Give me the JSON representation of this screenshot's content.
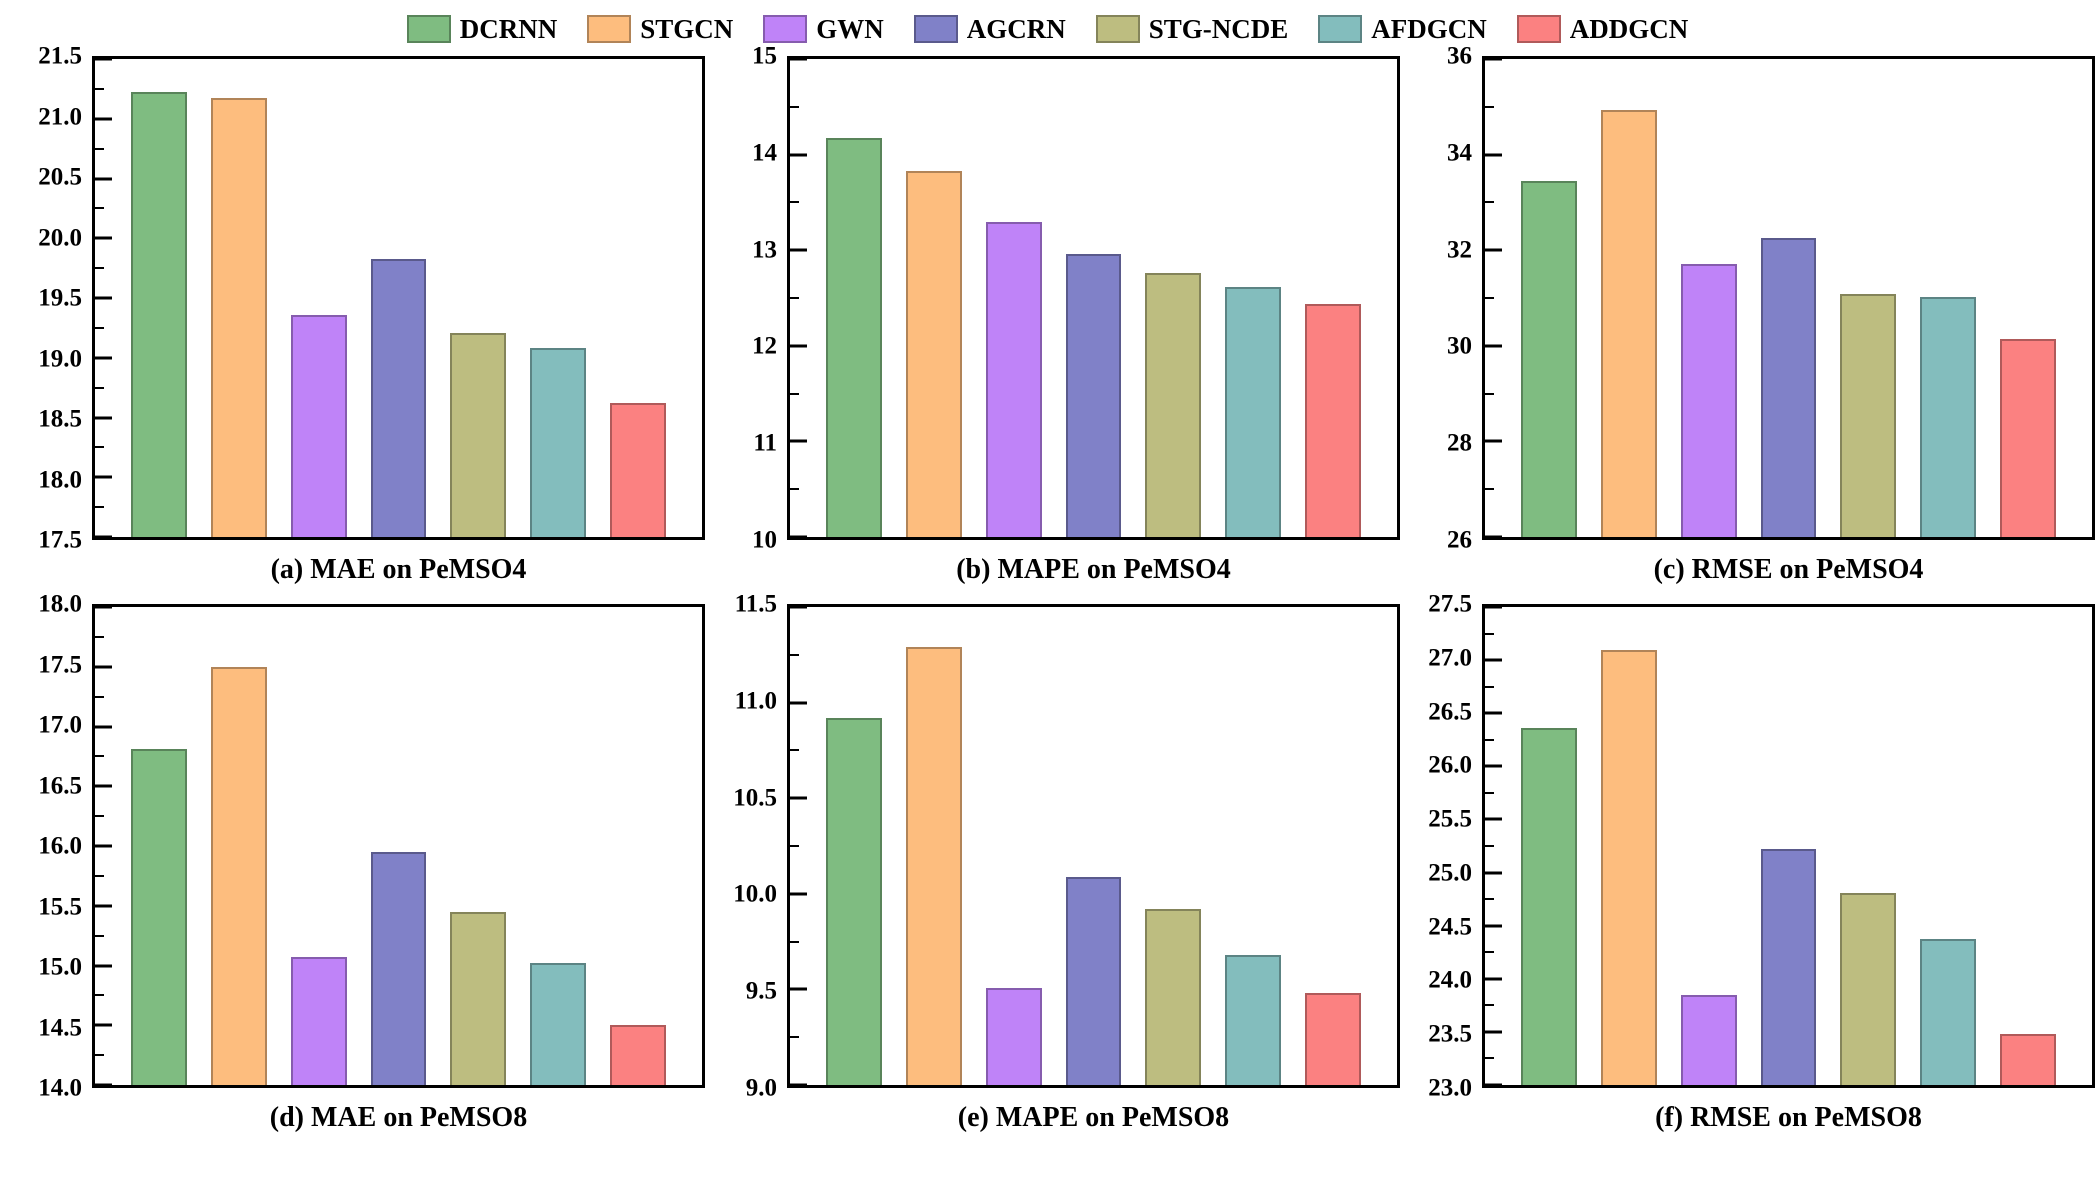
{
  "figure": {
    "legend": [
      {
        "label": "DCRNN",
        "fill": "#7fbc81",
        "edge": "#59845a"
      },
      {
        "label": "STGCN",
        "fill": "#fdbd7e",
        "edge": "#b18458"
      },
      {
        "label": "GWN",
        "fill": "#bf83f8",
        "edge": "#865cae"
      },
      {
        "label": "AGCRN",
        "fill": "#8081c8",
        "edge": "#5a5a8c"
      },
      {
        "label": "STG-NCDE",
        "fill": "#bdbd80",
        "edge": "#84845a"
      },
      {
        "label": "AFDGCN",
        "fill": "#83bdbd",
        "edge": "#5c8484"
      },
      {
        "label": "ADDGCN",
        "fill": "#fb8181",
        "edge": "#b05a5a"
      }
    ]
  },
  "chart_data": [
    {
      "type": "bar",
      "title": "(a) MAE on PeMSO4",
      "categories": [
        "DCRNN",
        "STGCN",
        "GWN",
        "AGCRN",
        "STG-NCDE",
        "AFDGCN",
        "ADDGCN"
      ],
      "values": [
        21.22,
        21.17,
        19.36,
        19.83,
        19.21,
        19.08,
        18.62
      ],
      "ylim": [
        17.5,
        21.5
      ],
      "yticks": [
        "17.5",
        "18.0",
        "18.5",
        "19.0",
        "19.5",
        "20.0",
        "20.5",
        "21.0",
        "21.5"
      ],
      "minor_step": 0.25,
      "grid": false,
      "legend_position": "top-center"
    },
    {
      "type": "bar",
      "title": "(b) MAPE on PeMSO4",
      "categories": [
        "DCRNN",
        "STGCN",
        "GWN",
        "AGCRN",
        "STG-NCDE",
        "AFDGCN",
        "ADDGCN"
      ],
      "values": [
        14.17,
        13.83,
        13.3,
        12.96,
        12.76,
        12.62,
        12.44
      ],
      "ylim": [
        10,
        15
      ],
      "yticks": [
        "10",
        "11",
        "12",
        "13",
        "14",
        "15"
      ],
      "minor_step": 0.5,
      "grid": false,
      "legend_position": "top-center"
    },
    {
      "type": "bar",
      "title": "(c) RMSE on PeMSO4",
      "categories": [
        "DCRNN",
        "STGCN",
        "GWN",
        "AGCRN",
        "STG-NCDE",
        "AFDGCN",
        "ADDGCN"
      ],
      "values": [
        33.44,
        34.93,
        31.72,
        32.26,
        31.09,
        31.02,
        30.14
      ],
      "ylim": [
        26,
        36
      ],
      "yticks": [
        "26",
        "28",
        "30",
        "32",
        "34",
        "36"
      ],
      "minor_step": 1,
      "grid": false,
      "legend_position": "top-center"
    },
    {
      "type": "bar",
      "title": "(d) MAE on PeMSO8",
      "categories": [
        "DCRNN",
        "STGCN",
        "GWN",
        "AGCRN",
        "STG-NCDE",
        "AFDGCN",
        "ADDGCN"
      ],
      "values": [
        16.81,
        17.5,
        15.07,
        15.95,
        15.45,
        15.02,
        14.5
      ],
      "ylim": [
        14,
        18
      ],
      "yticks": [
        "14.0",
        "14.5",
        "15.0",
        "15.5",
        "16.0",
        "16.5",
        "17.0",
        "17.5",
        "18.0"
      ],
      "minor_step": 0.25,
      "grid": false,
      "legend_position": "top-center"
    },
    {
      "type": "bar",
      "title": "(e) MAPE on PeMSO8",
      "categories": [
        "DCRNN",
        "STGCN",
        "GWN",
        "AGCRN",
        "STG-NCDE",
        "AFDGCN",
        "ADDGCN"
      ],
      "values": [
        10.92,
        11.29,
        9.51,
        10.09,
        9.92,
        9.68,
        9.48
      ],
      "ylim": [
        9,
        11.5
      ],
      "yticks": [
        "9.0",
        "9.5",
        "10.0",
        "10.5",
        "11.0",
        "11.5"
      ],
      "minor_step": 0.25,
      "grid": false,
      "legend_position": "top-center"
    },
    {
      "type": "bar",
      "title": "(f) RMSE on PeMSO8",
      "categories": [
        "DCRNN",
        "STGCN",
        "GWN",
        "AGCRN",
        "STG-NCDE",
        "AFDGCN",
        "ADDGCN"
      ],
      "values": [
        26.36,
        27.1,
        23.85,
        25.22,
        24.81,
        24.37,
        23.48
      ],
      "ylim": [
        23,
        27.5
      ],
      "yticks": [
        "23.0",
        "23.5",
        "24.0",
        "24.5",
        "25.0",
        "25.5",
        "26.0",
        "26.5",
        "27.0",
        "27.5"
      ],
      "minor_step": 0.25,
      "grid": false,
      "legend_position": "top-center"
    }
  ]
}
